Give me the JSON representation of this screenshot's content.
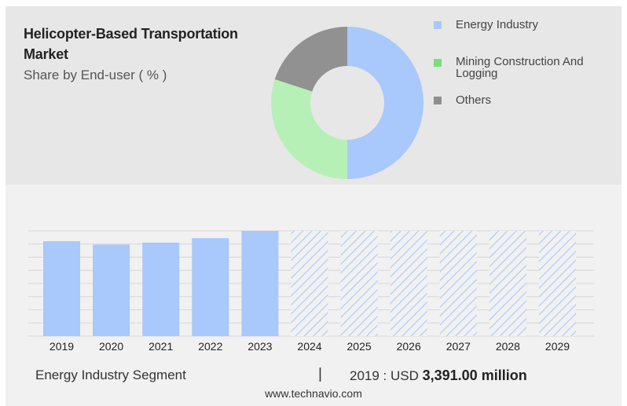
{
  "title": "Helicopter-Based Transportation Market",
  "subtitle": "Share by End-user ( % )",
  "colors": {
    "energy": "#a9c8fb",
    "mining": "#b6f0b7",
    "others": "#919191",
    "legend_energy": "#a9c8fb",
    "legend_mining": "#7bdc7c",
    "legend_others": "#8f8f8f",
    "bar": "#a9c8fb",
    "forecast_hatch": "#a9c8fb"
  },
  "legend": [
    {
      "label": "Energy Industry",
      "color_key": "legend_energy"
    },
    {
      "label": "Mining Construction And Logging",
      "color_key": "legend_mining"
    },
    {
      "label": "Others",
      "color_key": "legend_others"
    }
  ],
  "chart_data": [
    {
      "type": "pie",
      "style": "donut",
      "slices": [
        {
          "label": "Energy Industry",
          "value": 50,
          "color": "#a9c8fb"
        },
        {
          "label": "Mining Construction And Logging",
          "value": 30,
          "color": "#b6f0b7"
        },
        {
          "label": "Others",
          "value": 20,
          "color": "#919191"
        }
      ]
    },
    {
      "type": "bar",
      "categories": [
        "2019",
        "2020",
        "2021",
        "2022",
        "2023",
        "2024",
        "2025",
        "2026",
        "2027",
        "2028",
        "2029"
      ],
      "values": [
        3391,
        3270,
        3340,
        3500,
        3760,
        3760,
        3760,
        3760,
        3760,
        3760,
        3760
      ],
      "forecast_from": "2024",
      "ylim": [
        0,
        3760
      ],
      "grid": true
    }
  ],
  "footer": {
    "segment": "Energy Industry Segment",
    "separator": "|",
    "value_prefix": "2019 : USD",
    "value_bold": "3,391.00 million",
    "source": "www.technavio.com"
  }
}
